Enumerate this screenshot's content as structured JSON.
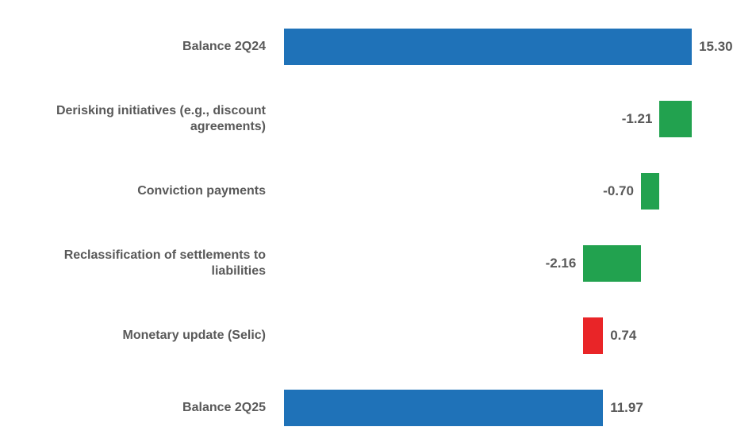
{
  "chart_data": {
    "type": "bar",
    "subtype": "waterfall",
    "orientation": "horizontal",
    "title": "",
    "xlabel": "",
    "ylabel": "",
    "grid": false,
    "axes_visible": false,
    "legend": null,
    "xlim": [
      0,
      17.7
    ],
    "categories": [
      "Balance 2Q24",
      "Derisking initiatives (e.g., discount agreements)",
      "Conviction payments",
      "Reclassification of settlements to liabilities",
      "Monetary update (Selic)",
      "Balance 2Q25"
    ],
    "category_lines": [
      [
        "Balance 2Q24"
      ],
      [
        "Derisking initiatives (e.g., discount",
        "agreements)"
      ],
      [
        "Conviction payments"
      ],
      [
        "Reclassification of settlements to",
        "liabilities"
      ],
      [
        "Monetary update (Selic)"
      ],
      [
        "Balance 2Q25"
      ]
    ],
    "values": [
      15.3,
      -1.21,
      -0.7,
      -2.16,
      0.74,
      11.97
    ],
    "value_labels": [
      "15.30",
      "-1.21",
      "-0.70",
      "-2.16",
      "0.74",
      "11.97"
    ],
    "bar_types": [
      "total",
      "decrease",
      "decrease",
      "decrease",
      "increase",
      "total"
    ],
    "segments": [
      [
        0,
        15.3
      ],
      [
        14.09,
        15.3
      ],
      [
        13.39,
        14.09
      ],
      [
        11.23,
        13.39
      ],
      [
        11.23,
        11.97
      ],
      [
        0,
        11.97
      ]
    ],
    "running_totals": [
      15.3,
      14.09,
      13.39,
      11.23,
      11.97,
      11.97
    ]
  },
  "colors": {
    "total_bar": "#1f72b8",
    "decrease_bar": "#22a24f",
    "increase_bar": "#e92528",
    "label_text": "#595959",
    "background": "#ffffff"
  }
}
